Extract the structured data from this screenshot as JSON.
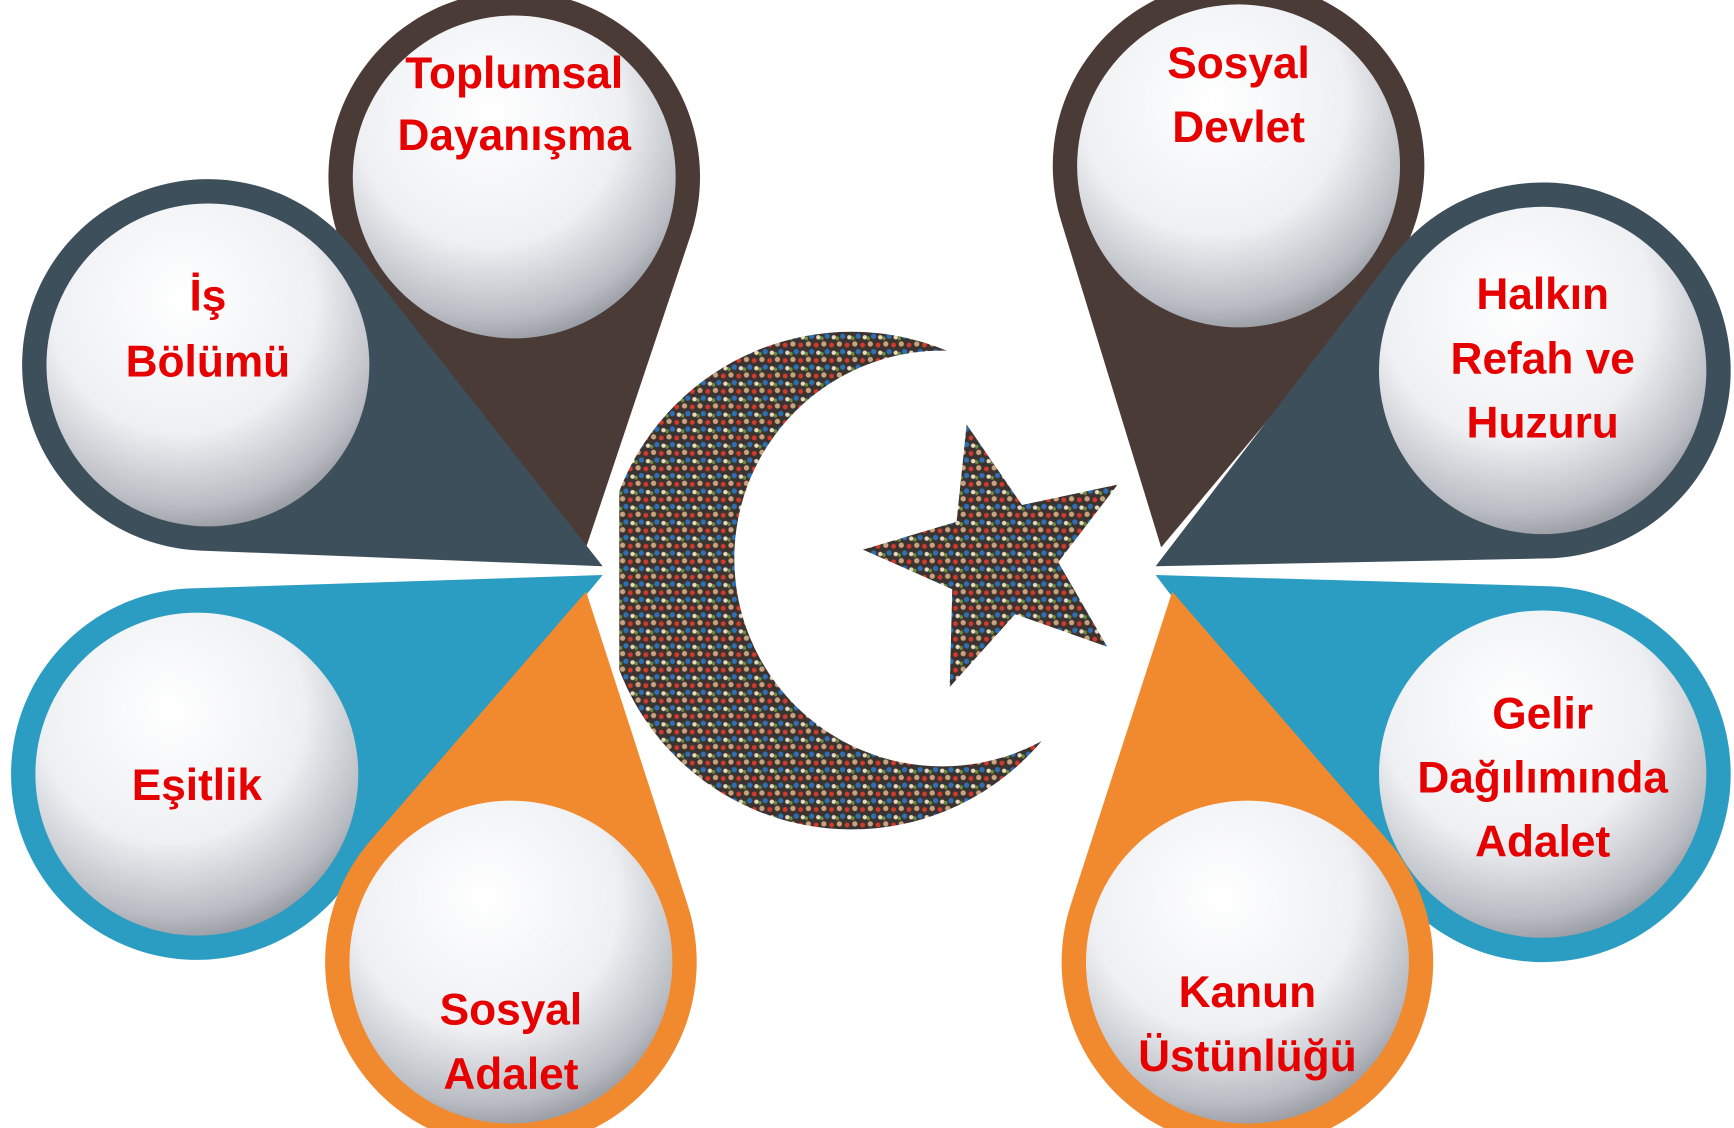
{
  "nodes": [
    {
      "lines": [
        "Toplumsal",
        "Dayanışma"
      ]
    },
    {
      "lines": [
        "Sosyal",
        "Devlet"
      ]
    },
    {
      "lines": [
        "İş",
        "Bölümü"
      ]
    },
    {
      "lines": [
        "Halkın",
        "Refah ve",
        "Huzuru"
      ]
    },
    {
      "lines": [
        "Eşitlik"
      ]
    },
    {
      "lines": [
        "Gelir",
        "Dağılımında",
        "Adalet"
      ]
    },
    {
      "lines": [
        "Sosyal",
        "Adalet"
      ]
    },
    {
      "lines": [
        "Kanun",
        "Üstünlüğü"
      ]
    }
  ]
}
